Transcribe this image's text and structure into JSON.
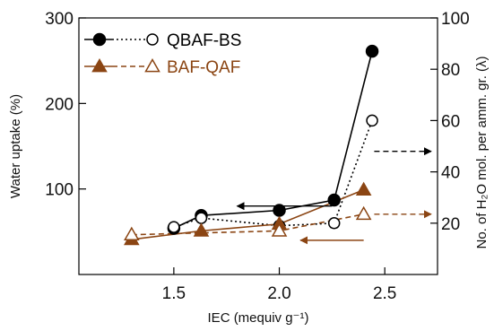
{
  "chart_data": {
    "type": "line",
    "xlabel": "IEC (mequiv g⁻¹)",
    "ylabel_left": "Water uptake (%)",
    "ylabel_right": "No. of H₂O mol. per amm. gr. (λ)",
    "xlim": [
      1.05,
      2.75
    ],
    "ylim_left": [
      0,
      300
    ],
    "ylim_right": [
      0,
      100
    ],
    "x_ticks": [
      "1.5",
      "2.0",
      "2.5"
    ],
    "y_left_ticks": [
      "100",
      "200",
      "300"
    ],
    "y_right_ticks": [
      "20",
      "40",
      "60",
      "80",
      "100"
    ],
    "grid": false,
    "legend_position": "top-left",
    "series": [
      {
        "name": "QBAF-BS",
        "axis": "left",
        "style": "solid",
        "marker": "filled-circle",
        "color": "#000000",
        "x": [
          1.5,
          1.63,
          2.0,
          2.26,
          2.44
        ],
        "y": [
          54,
          69,
          75,
          87,
          261
        ]
      },
      {
        "name": "QBAF-BS",
        "axis": "right",
        "style": "dotted",
        "marker": "open-circle",
        "color": "#000000",
        "x": [
          1.5,
          1.63,
          2.0,
          2.26,
          2.44
        ],
        "y": [
          18.5,
          22,
          19,
          20,
          60
        ]
      },
      {
        "name": "BAF-QAF",
        "axis": "left",
        "style": "solid",
        "marker": "filled-triangle",
        "color": "#8B4513",
        "x": [
          1.3,
          1.63,
          2.0,
          2.4
        ],
        "y": [
          41,
          51,
          59,
          99
        ]
      },
      {
        "name": "BAF-QAF",
        "axis": "right",
        "style": "dashed",
        "marker": "open-triangle",
        "color": "#8B4513",
        "x": [
          1.3,
          2.0,
          2.4
        ],
        "y": [
          15.5,
          17,
          23.5
        ]
      }
    ],
    "annotations": [
      {
        "type": "arrow",
        "target_axis": "left",
        "color": "#000000",
        "x_from": 2.25,
        "x_to": 1.8,
        "y": 80
      },
      {
        "type": "arrow",
        "target_axis": "right",
        "color": "#000000",
        "x_from": 2.45,
        "x_to": 2.72,
        "y": 48
      },
      {
        "type": "arrow",
        "target_axis": "left",
        "color": "#8B4513",
        "x_from": 2.4,
        "x_to": 2.1,
        "y": 40
      },
      {
        "type": "arrow",
        "target_axis": "right",
        "color": "#8B4513",
        "x_from": 2.45,
        "x_to": 2.72,
        "y": 23.5
      }
    ]
  }
}
